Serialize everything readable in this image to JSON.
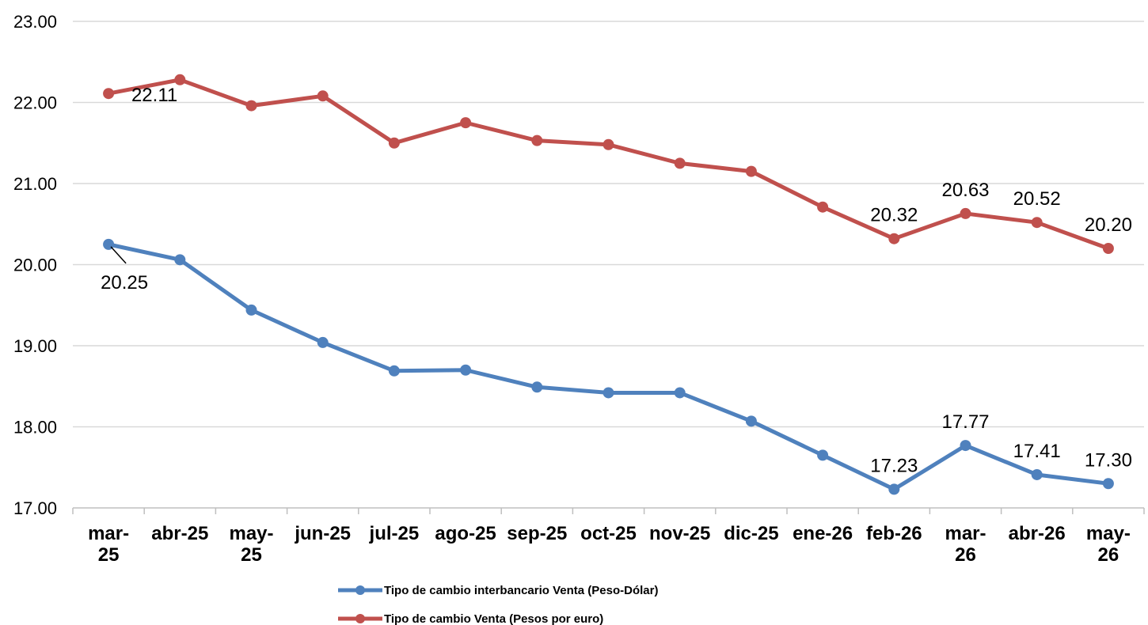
{
  "chart_data": {
    "type": "line",
    "title": "",
    "xlabel": "",
    "ylabel": "",
    "categories": [
      "mar-25",
      "abr-25",
      "may-25",
      "jun-25",
      "jul-25",
      "ago-25",
      "sep-25",
      "oct-25",
      "nov-25",
      "dic-25",
      "ene-26",
      "feb-26",
      "mar-26",
      "abr-26",
      "may-26"
    ],
    "ylim": [
      17.0,
      23.0
    ],
    "yticks": [
      "17.00",
      "18.00",
      "19.00",
      "20.00",
      "21.00",
      "22.00",
      "23.00"
    ],
    "grid": true,
    "legend_position": "bottom",
    "series": [
      {
        "name": "Tipo de cambio interbancario Venta (Peso-Dólar)",
        "color": "#4F81BD",
        "values": [
          20.25,
          20.06,
          19.44,
          19.04,
          18.69,
          18.7,
          18.49,
          18.42,
          18.42,
          18.07,
          17.65,
          17.23,
          17.77,
          17.41,
          17.3
        ],
        "labels": [
          {
            "index": 0,
            "text": "20.25"
          },
          {
            "index": 11,
            "text": "17.23"
          },
          {
            "index": 12,
            "text": "17.77"
          },
          {
            "index": 13,
            "text": "17.41"
          },
          {
            "index": 14,
            "text": "17.30"
          }
        ]
      },
      {
        "name": "Tipo de cambio Venta (Pesos por euro)",
        "color": "#C0504D",
        "values": [
          22.11,
          22.28,
          21.96,
          22.08,
          21.5,
          21.75,
          21.53,
          21.48,
          21.25,
          21.15,
          20.71,
          20.32,
          20.63,
          20.52,
          20.2
        ],
        "labels": [
          {
            "index": 0,
            "text": "22.11"
          },
          {
            "index": 11,
            "text": "20.32"
          },
          {
            "index": 12,
            "text": "20.63"
          },
          {
            "index": 13,
            "text": "20.52"
          },
          {
            "index": 14,
            "text": "20.20"
          }
        ]
      }
    ]
  }
}
